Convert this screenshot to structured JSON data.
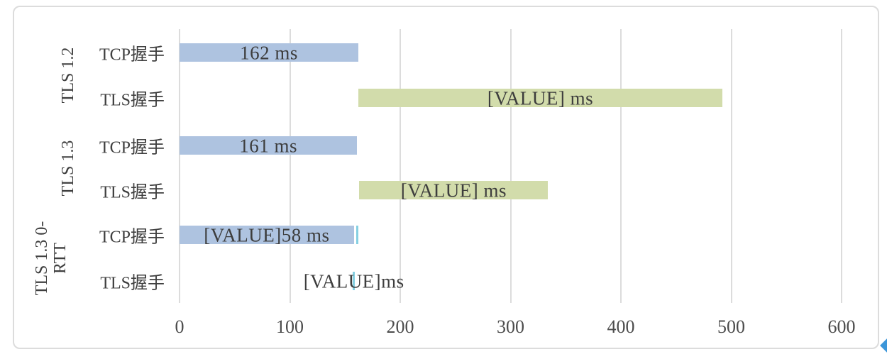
{
  "chart_data": {
    "type": "bar",
    "orientation": "horizontal-stacked",
    "title": "",
    "xlabel": "",
    "ylabel": "",
    "xlim": [
      0,
      600
    ],
    "xticks": [
      0,
      100,
      200,
      300,
      400,
      500,
      600
    ],
    "grid": "vertical",
    "legend": "none",
    "unit": "ms",
    "groups": [
      {
        "name": "TLS 1.2",
        "lines": [
          "TLS 1.2"
        ]
      },
      {
        "name": "TLS 1.3",
        "lines": [
          "TLS 1.3"
        ]
      },
      {
        "name": "TLS 1.3 0-RTT",
        "lines": [
          "TLS 1.3 0-",
          "RTT"
        ]
      }
    ],
    "rows": [
      {
        "id": "tls12-tcp",
        "group": 0,
        "category": "TCP握手",
        "segments": [
          {
            "start": 0,
            "end": 162,
            "color": "blue",
            "label": "162 ms"
          }
        ]
      },
      {
        "id": "tls12-tls",
        "group": 0,
        "category": "TLS握手",
        "segments": [
          {
            "start": 162,
            "end": 492,
            "color": "green",
            "label": "[VALUE] ms"
          }
        ]
      },
      {
        "id": "tls13-tcp",
        "group": 1,
        "category": "TCP握手",
        "segments": [
          {
            "start": 0,
            "end": 161,
            "color": "blue",
            "label": "161 ms"
          }
        ]
      },
      {
        "id": "tls13-tls",
        "group": 1,
        "category": "TLS握手",
        "segments": [
          {
            "start": 163,
            "end": 334,
            "color": "green",
            "label": "[VALUE] ms"
          }
        ]
      },
      {
        "id": "tls13-0rtt-tcp",
        "group": 2,
        "category": "TCP握手",
        "segments": [
          {
            "start": 0,
            "end": 158,
            "color": "blue",
            "label": "[VALUE]58 ms"
          },
          {
            "start": 160,
            "end": 162,
            "color": "teal"
          }
        ]
      },
      {
        "id": "tls13-0rtt-tls",
        "group": 2,
        "category": "TLS握手",
        "segments": [
          {
            "start": 157,
            "end": 159,
            "color": "teal",
            "label": "[VALUE]ms"
          }
        ]
      }
    ],
    "colors": {
      "blue": "#aec3e0",
      "green": "#d2dcab",
      "teal": "#86d0e2",
      "gridline": "#dcdcdc",
      "bar_label": "#3d3d3d",
      "axis_label": "#4c4c4c",
      "frame_border": "#dcdcdc",
      "selection_handle": "#3c96d9"
    }
  }
}
